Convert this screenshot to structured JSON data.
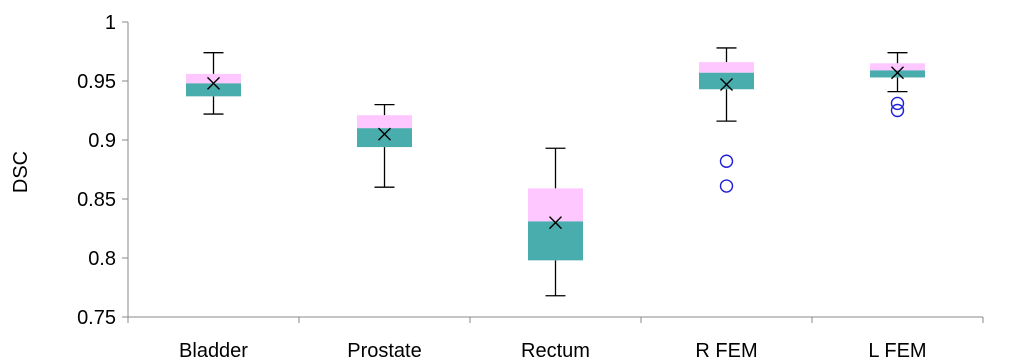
{
  "chart_data": {
    "type": "box",
    "title": "",
    "xlabel": "",
    "ylabel": "DSC",
    "ylim": [
      0.75,
      1
    ],
    "yticks": [
      "0.75",
      "0.8",
      "0.85",
      "0.9",
      "0.95",
      "1"
    ],
    "grid": false,
    "legend": "none",
    "colors": {
      "lower_box": "#4aadad",
      "upper_box": "#ffc7ff",
      "whisker": "#000000",
      "mean_marker": "#000000",
      "outlier": "#1f1fd6"
    },
    "categories": [
      "Bladder",
      "Prostate",
      "Rectum",
      "R FEM",
      "L FEM"
    ],
    "boxes": [
      {
        "whisker_low": 0.922,
        "q1": 0.937,
        "median": 0.948,
        "q3": 0.956,
        "whisker_high": 0.974,
        "mean": 0.948,
        "outliers": []
      },
      {
        "whisker_low": 0.86,
        "q1": 0.894,
        "median": 0.91,
        "q3": 0.921,
        "whisker_high": 0.93,
        "mean": 0.905,
        "outliers": []
      },
      {
        "whisker_low": 0.768,
        "q1": 0.798,
        "median": 0.831,
        "q3": 0.859,
        "whisker_high": 0.893,
        "mean": 0.83,
        "outliers": []
      },
      {
        "whisker_low": 0.916,
        "q1": 0.943,
        "median": 0.957,
        "q3": 0.966,
        "whisker_high": 0.978,
        "mean": 0.947,
        "outliers": [
          0.882,
          0.861
        ]
      },
      {
        "whisker_low": 0.941,
        "q1": 0.953,
        "median": 0.959,
        "q3": 0.965,
        "whisker_high": 0.974,
        "mean": 0.957,
        "outliers": [
          0.931,
          0.925
        ]
      }
    ]
  }
}
